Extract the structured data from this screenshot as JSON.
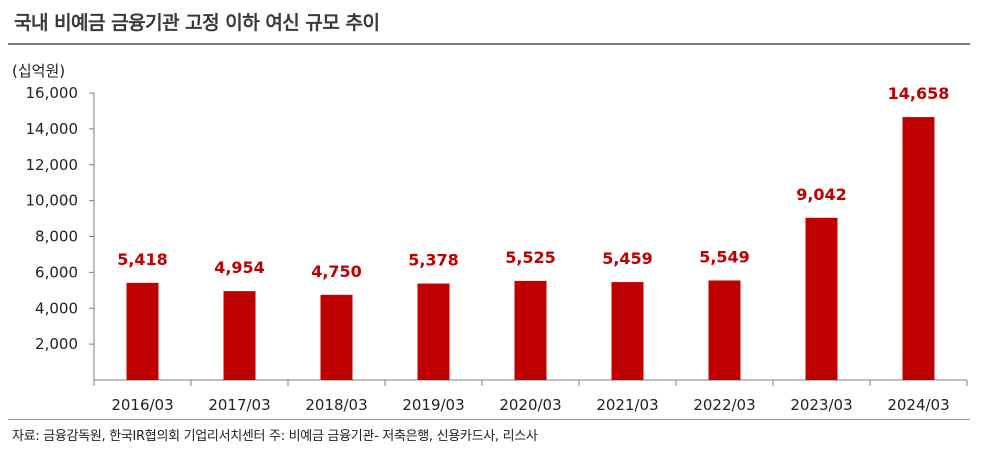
{
  "title": "국내 비예금 금융기관 고정 이하 여신 규모 추이",
  "source": "자료: 금융감독원, 한국IR협의회 기업리서치센터  주: 비예금 금융기관- 저축은행, 신용카드사, 리스사",
  "colors": {
    "bar": "#c00000",
    "label": "#c00000",
    "axis": "#7f7f7f"
  },
  "chart_data": {
    "type": "bar",
    "title": "국내 비예금 금융기관 고정 이하 여신 규모 추이",
    "ylabel": "(십억원)",
    "xlabel": "",
    "categories": [
      "2016/03",
      "2017/03",
      "2018/03",
      "2019/03",
      "2020/03",
      "2021/03",
      "2022/03",
      "2023/03",
      "2024/03"
    ],
    "values": [
      5418,
      4954,
      4750,
      5378,
      5525,
      5459,
      5549,
      9042,
      14658
    ],
    "value_labels": [
      "5,418",
      "4,954",
      "4,750",
      "5,378",
      "5,525",
      "5,459",
      "5,549",
      "9,042",
      "14,658"
    ],
    "ylim": [
      0,
      16000
    ],
    "yticks": [
      2000,
      4000,
      6000,
      8000,
      10000,
      12000,
      14000,
      16000
    ],
    "ytick_labels": [
      "2,000",
      "4,000",
      "6,000",
      "8,000",
      "10,000",
      "12,000",
      "14,000",
      "16,000"
    ],
    "grid": false,
    "legend": "none"
  }
}
